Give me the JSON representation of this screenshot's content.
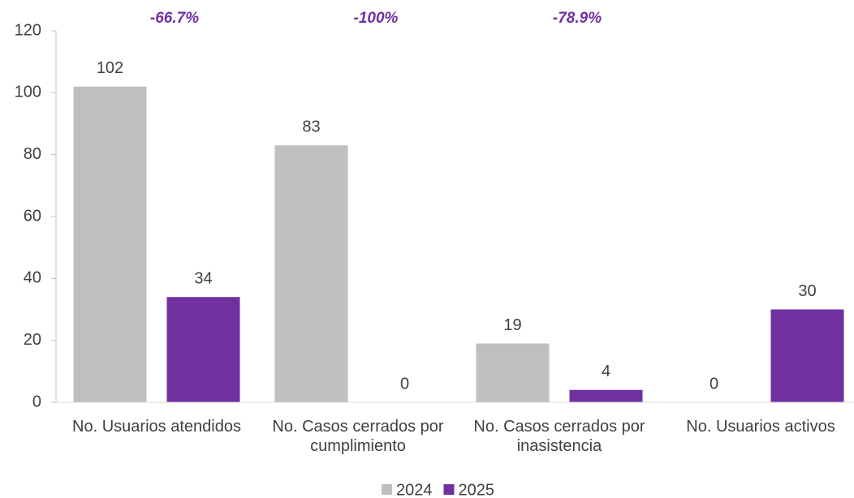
{
  "chart_data": {
    "type": "bar",
    "categories": [
      "No. Usuarios atendidos",
      "No. Casos cerrados por cumplimiento",
      "No. Casos cerrados por inasistencia",
      "No. Usuarios activos"
    ],
    "series": [
      {
        "name": "2024",
        "color": "#bfbfbf",
        "values": [
          102,
          83,
          19,
          0
        ]
      },
      {
        "name": "2025",
        "color": "#7030a0",
        "values": [
          34,
          0,
          4,
          30
        ]
      }
    ],
    "annotations": [
      "-66.7%",
      "-100%",
      "-78.9%"
    ],
    "annotation_color": "#7030a0",
    "ylim": [
      0,
      120
    ],
    "yticks": [
      0,
      20,
      40,
      60,
      80,
      100,
      120
    ],
    "grid": false,
    "legend": "bottom"
  }
}
